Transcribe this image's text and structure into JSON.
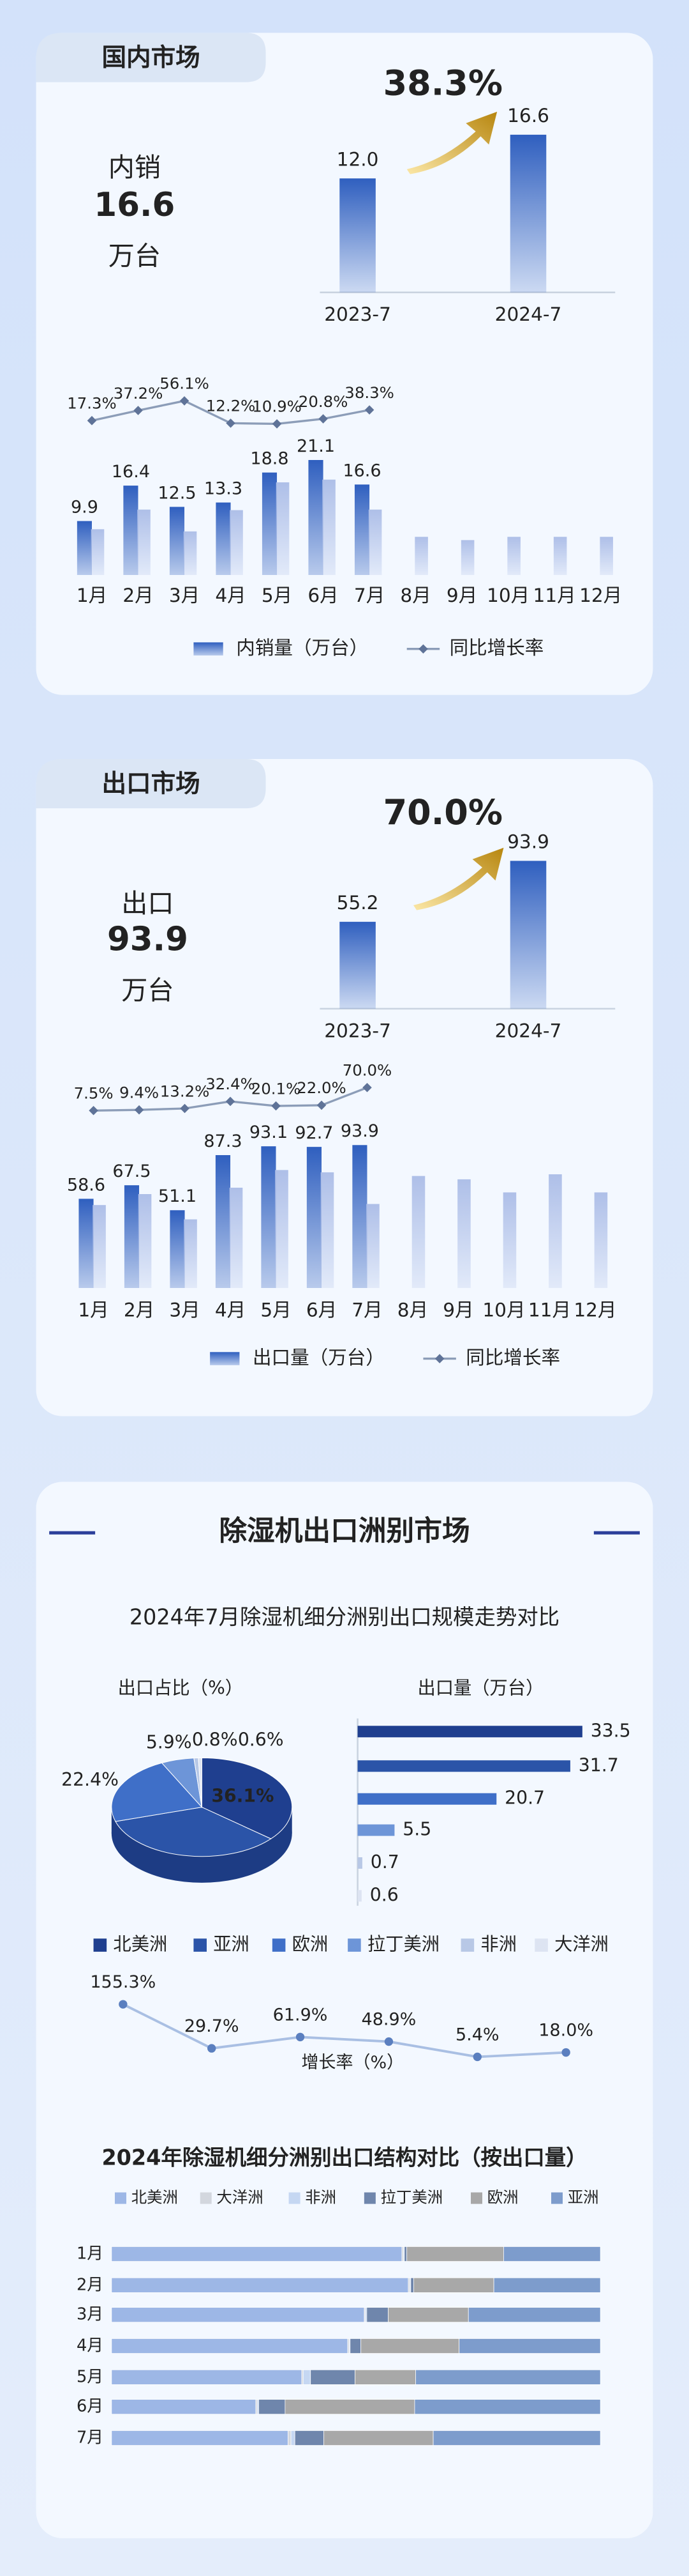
{
  "cards": [
    {
      "tab": "国内市场",
      "kpi": {
        "label": "内销",
        "value": 16.6,
        "unit": "万台"
      }
    },
    {
      "tab": "出口市场",
      "kpi": {
        "label": "出口",
        "value": 93.9,
        "unit": "万台"
      }
    },
    {
      "title": "除湿机出口洲别市场",
      "subtitle": "2024年7月除湿机细分洲别出口规模走势对比"
    }
  ],
  "chart_data": [
    {
      "type": "mini-bar",
      "categories": [
        "2023-7",
        "2024-7"
      ],
      "values": [
        12.0,
        16.6
      ],
      "value_labels": [
        "12.0",
        "16.6"
      ],
      "annotation": "38.3%",
      "color": "#2f5fbf"
    },
    {
      "type": "combo",
      "categories": [
        "1月",
        "2月",
        "3月",
        "4月",
        "5月",
        "6月",
        "7月",
        "8月",
        "9月",
        "10月",
        "11月",
        "12月"
      ],
      "series": [
        {
          "name": "内销量（万台）",
          "color": "#2f5fbf",
          "values": [
            9.9,
            16.4,
            12.5,
            13.3,
            18.8,
            21.1,
            16.6,
            null,
            null,
            null,
            null,
            null
          ]
        },
        {
          "color": "#aebfe8",
          "values": [
            8.4,
            12.0,
            8.0,
            11.9,
            17.0,
            17.5,
            12.0,
            7.0,
            6.4,
            7.0,
            7.0,
            7.0
          ]
        },
        {
          "name": "同比增长率",
          "type": "line",
          "color": "#8c9db8",
          "values": [
            17.3,
            37.2,
            56.1,
            12.2,
            10.9,
            20.8,
            38.3,
            null,
            null,
            null,
            null,
            null
          ],
          "value_labels": [
            "17.3%",
            "37.2%",
            "56.1%",
            "12.2%",
            "10.9%",
            "20.8%",
            "38.3%",
            null,
            null,
            null,
            null,
            null
          ]
        }
      ]
    },
    {
      "type": "mini-bar",
      "categories": [
        "2023-7",
        "2024-7"
      ],
      "values": [
        55.2,
        93.9
      ],
      "annotation": "70.0%",
      "color": "#2f5fbf"
    },
    {
      "type": "combo",
      "categories": [
        "1月",
        "2月",
        "3月",
        "4月",
        "5月",
        "6月",
        "7月",
        "8月",
        "9月",
        "10月",
        "11月",
        "12月"
      ],
      "series": [
        {
          "name": "出口量（万台）",
          "color": "#2f5fbf",
          "values": [
            58.6,
            67.5,
            51.1,
            87.3,
            93.1,
            92.7,
            93.9,
            null,
            null,
            null,
            null,
            null
          ]
        },
        {
          "color": "#aebfe8",
          "values": [
            54.5,
            61.7,
            45.1,
            65.9,
            77.5,
            76.0,
            55.2,
            73.6,
            71.4,
            62.8,
            74.7,
            62.8
          ]
        },
        {
          "name": "同比增长率",
          "type": "line",
          "color": "#8c9db8",
          "values": [
            7.5,
            9.4,
            13.2,
            32.4,
            20.1,
            22.0,
            70.0,
            null,
            null,
            null,
            null,
            null
          ],
          "value_labels": [
            "7.5%",
            "9.4%",
            "13.2%",
            "32.4%",
            "20.1%",
            "22.0%",
            "70.0%",
            null,
            null,
            null,
            null,
            null
          ]
        }
      ]
    },
    {
      "type": "pie",
      "title": "出口占比（%）",
      "categories": [
        "北美洲",
        "亚洲",
        "欧洲",
        "拉丁美洲",
        "非洲",
        "大洋洲"
      ],
      "values": [
        36.1,
        34.2,
        22.4,
        5.9,
        0.8,
        0.6
      ],
      "value_labels": [
        "36.1%",
        null,
        "22.4%",
        "5.9%",
        "0.8%",
        "0.6%"
      ],
      "colors": [
        "#1f3f8f",
        "#2b54a8",
        "#3f6fc8",
        "#6d95d8",
        "#b8c8e6",
        "#dde4f2"
      ]
    },
    {
      "type": "hbar",
      "title": "出口量（万台）",
      "values": [
        33.5,
        31.7,
        20.7,
        5.5,
        0.7,
        0.6
      ],
      "colors": [
        "#1f3f8f",
        "#2b54a8",
        "#3f6fc8",
        "#6d95d8",
        "#b8c8e6",
        "#dde4f2"
      ]
    },
    {
      "type": "line",
      "title": "增长率（%）",
      "values": [
        155.3,
        29.7,
        61.9,
        48.9,
        5.4,
        18.0
      ],
      "value_labels": [
        "155.3%",
        "29.7%",
        "61.9%",
        "48.9%",
        "5.4%",
        "18.0%"
      ],
      "color": "#5b7fbf"
    },
    {
      "type": "stacked-hbar",
      "title": "2024年除湿机细分洲别出口结构对比（按出口量）",
      "categories": [
        "1月",
        "2月",
        "3月",
        "4月",
        "5月",
        "6月",
        "7月"
      ],
      "series": [
        {
          "name": "北美洲",
          "color": "#9db7e6",
          "values": [
            59.4,
            60.7,
            51.7,
            48.3,
            38.9,
            29.5,
            36.1
          ]
        },
        {
          "name": "大洋洲",
          "color": "#d3d7de",
          "values": [
            0.3,
            0.3,
            0.2,
            0.3,
            0.3,
            0.3,
            0.6
          ]
        },
        {
          "name": "非洲",
          "color": "#c5d7f2",
          "values": [
            0.2,
            0.2,
            0.3,
            0.2,
            1.5,
            0.3,
            0.8
          ]
        },
        {
          "name": "拉丁美洲",
          "color": "#6f86ac",
          "values": [
            0.5,
            0.6,
            4.4,
            2.2,
            9.1,
            5.4,
            5.9
          ]
        },
        {
          "name": "欧洲",
          "color": "#a8a8a8",
          "values": [
            19.8,
            16.4,
            16.4,
            20.1,
            12.4,
            26.5,
            22.4
          ]
        },
        {
          "name": "亚洲",
          "color": "#7d9ccc",
          "values": [
            19.8,
            21.8,
            27.0,
            28.9,
            37.8,
            38.0,
            34.2
          ]
        }
      ]
    }
  ]
}
